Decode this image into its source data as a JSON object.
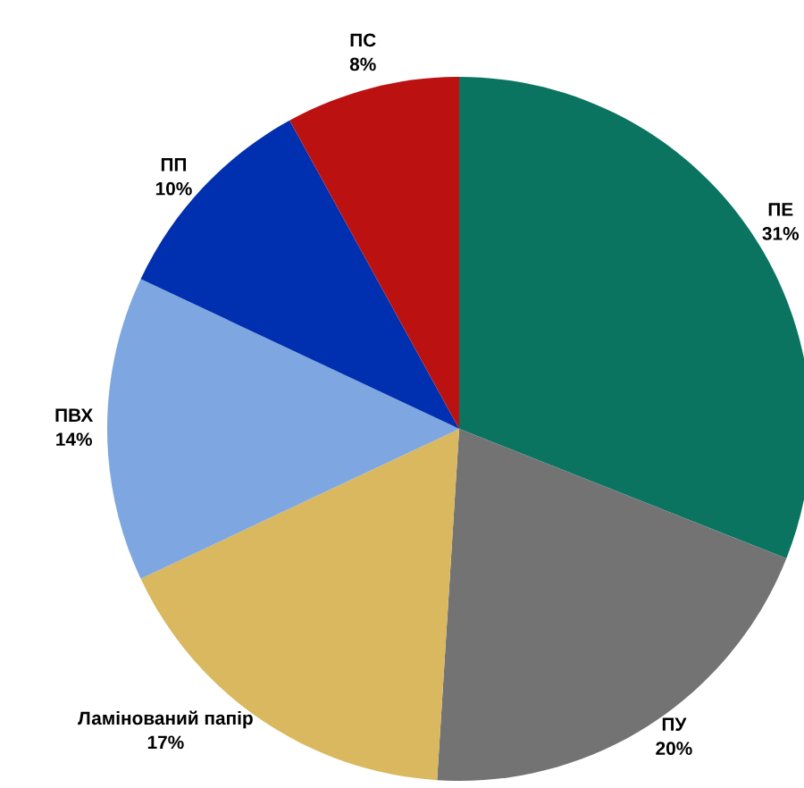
{
  "chart_data": {
    "type": "pie",
    "categories": [
      "ПЕ",
      "ПУ",
      "Ламінований папір",
      "ПВХ",
      "ПП",
      "ПС"
    ],
    "values": [
      31,
      20,
      17,
      14,
      10,
      8
    ],
    "colors": [
      "#0b7461",
      "#737373",
      "#d9b860",
      "#7ea6e0",
      "#0030b0",
      "#bb1111"
    ],
    "value_labels": [
      "31%",
      "20%",
      "17%",
      "14%",
      "10%",
      "8%"
    ]
  }
}
